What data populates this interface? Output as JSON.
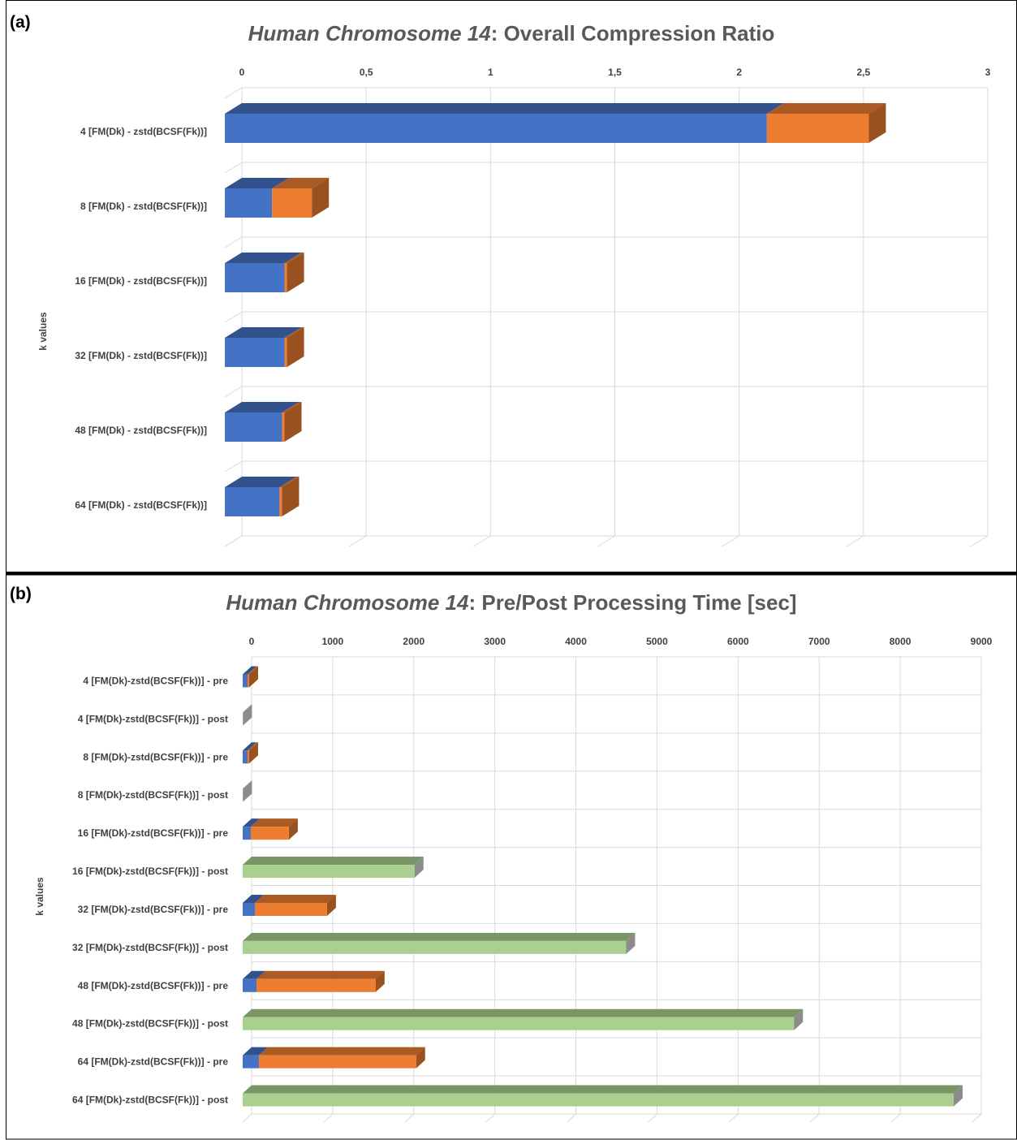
{
  "colors": {
    "blue": "#4472C4",
    "orange": "#ED7D31",
    "green": "#A9D08E",
    "gray_cap": "#8C8C8C",
    "grid": "#D9D9D9",
    "title": "#595959",
    "text": "#404040"
  },
  "chart_data": [
    {
      "panel_label": "(a)",
      "type": "bar",
      "orientation": "horizontal",
      "stacked": true,
      "three_d": true,
      "title_italic": "Human Chromosome 14",
      "title_rest": ":  Overall Compression Ratio",
      "ylabel": "k  values",
      "xlim": [
        0,
        3
      ],
      "xticks": [
        "0",
        "0,5",
        "1",
        "1,5",
        "2",
        "2,5",
        "3"
      ],
      "xtick_values": [
        0,
        0.5,
        1,
        1.5,
        2,
        2.5,
        3
      ],
      "grid": true,
      "legend": "none",
      "categories": [
        "4  [FM(Dk) - zstd(BCSF(Fk))]",
        "8  [FM(Dk) - zstd(BCSF(Fk))]",
        "16  [FM(Dk) - zstd(BCSF(Fk))]",
        "32 [FM(Dk) - zstd(BCSF(Fk))]",
        "48 [FM(Dk) - zstd(BCSF(Fk))]",
        "64 [FM(Dk) - zstd(BCSF(Fk))]"
      ],
      "series": [
        {
          "color": "blue",
          "values": [
            2.18,
            0.19,
            0.24,
            0.24,
            0.23,
            0.22
          ]
        },
        {
          "color": "orange",
          "values": [
            0.41,
            0.16,
            0.01,
            0.01,
            0.01,
            0.01
          ]
        }
      ]
    },
    {
      "panel_label": "(b)",
      "type": "bar",
      "orientation": "horizontal",
      "stacked": true,
      "three_d": true,
      "title_italic": "Human Chromosome 14",
      "title_rest": ":  Pre/Post Processing Time [sec]",
      "ylabel": "k  values",
      "xlim": [
        0,
        9000
      ],
      "xticks": [
        "0",
        "1000",
        "2000",
        "3000",
        "4000",
        "5000",
        "6000",
        "7000",
        "8000",
        "9000"
      ],
      "xtick_values": [
        0,
        1000,
        2000,
        3000,
        4000,
        5000,
        6000,
        7000,
        8000,
        9000
      ],
      "grid": true,
      "legend": "none",
      "categories": [
        "4 [FM(Dk)-zstd(BCSF(Fk))] - pre",
        "4 [FM(Dk)-zstd(BCSF(Fk))] - post",
        "8 [FM(Dk)-zstd(BCSF(Fk))] - pre",
        "8 [FM(Dk)-zstd(BCSF(Fk))] - post",
        "16 [FM(Dk)-zstd(BCSF(Fk))] - pre",
        "16 [FM(Dk)-zstd(BCSF(Fk))] - post",
        "32 [FM(Dk)-zstd(BCSF(Fk))] - pre",
        "32 [FM(Dk)-zstd(BCSF(Fk))] - post",
        "48 [FM(Dk)-zstd(BCSF(Fk))] - pre",
        "48 [FM(Dk)-zstd(BCSF(Fk))] - post",
        "64 [FM(Dk)-zstd(BCSF(Fk))] - pre",
        "64 [FM(Dk)-zstd(BCSF(Fk))] - post"
      ],
      "series": [
        {
          "color": "blue",
          "values": [
            60,
            0,
            60,
            0,
            100,
            0,
            150,
            0,
            170,
            0,
            200,
            0
          ]
        },
        {
          "color": "orange",
          "values": [
            20,
            0,
            20,
            0,
            470,
            0,
            890,
            0,
            1470,
            0,
            1940,
            0
          ]
        },
        {
          "color": "green",
          "values": [
            0,
            5,
            0,
            5,
            0,
            2120,
            0,
            4730,
            0,
            6800,
            0,
            8770
          ]
        }
      ]
    }
  ]
}
